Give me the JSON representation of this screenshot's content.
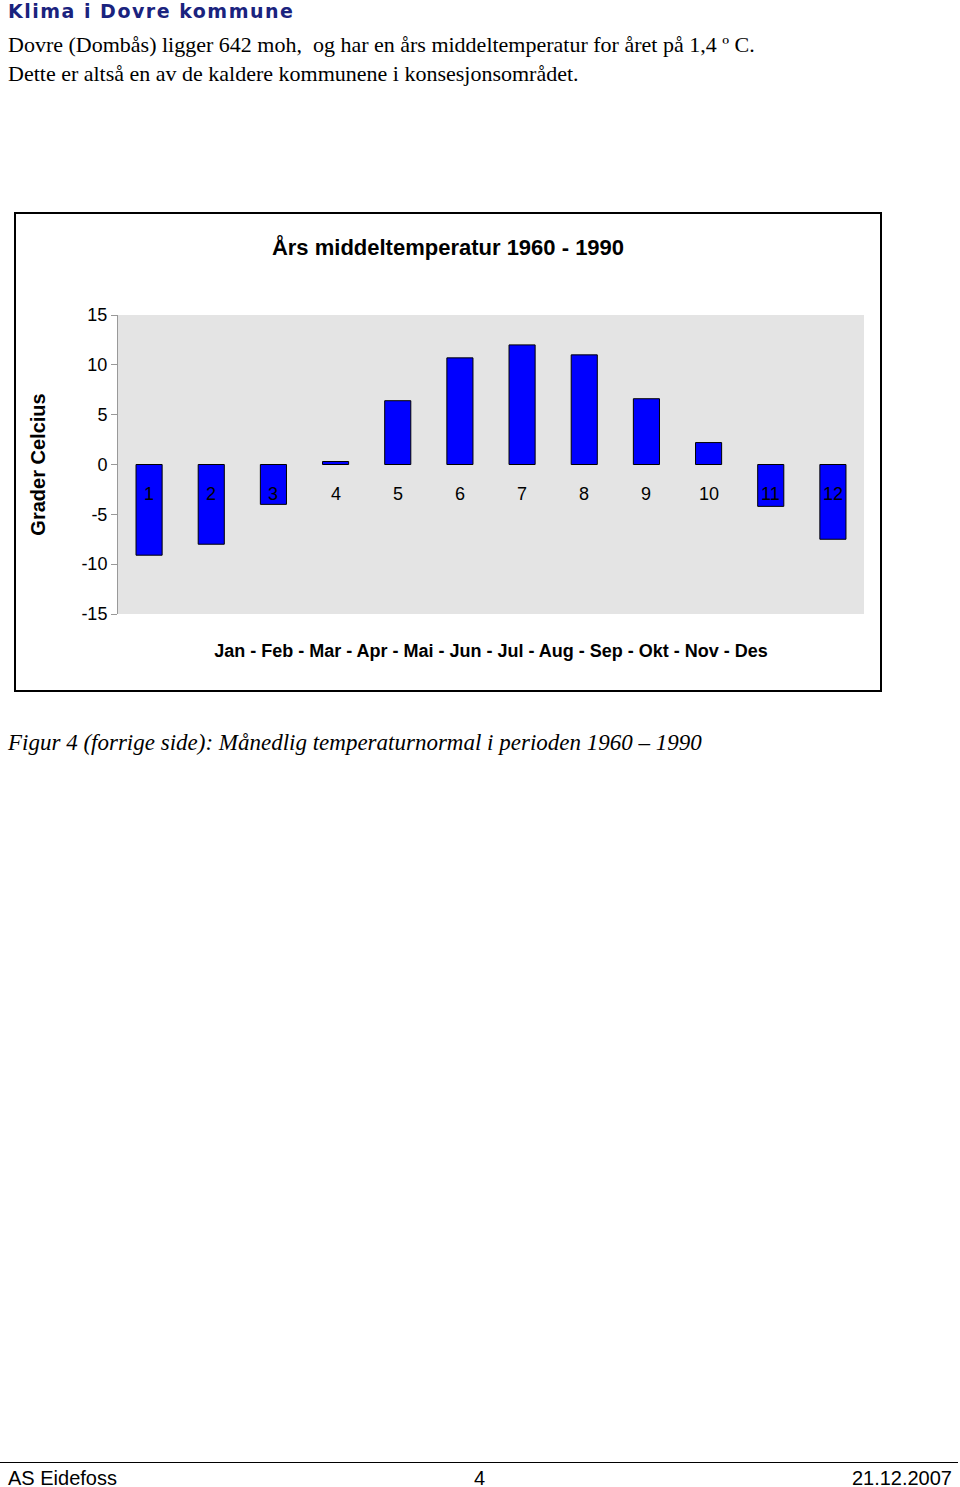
{
  "heading": "Klima i Dovre kommune",
  "text": [
    "Dovre (Dombås) ligger 642 moh,  og har en års middeltemperatur for året på 1,4 º C.",
    "Dette er altså en av de kaldere kommunene i konsesjonsområdet."
  ],
  "chart_data": {
    "type": "bar",
    "title": "Års middeltemperatur 1960 - 1990",
    "y_label": "Grader Celcius",
    "x_label": "Jan - Feb - Mar - Apr - Mai - Jun - Jul - Aug - Sep - Okt - Nov - Des",
    "categories": [
      "1",
      "2",
      "3",
      "4",
      "5",
      "6",
      "7",
      "8",
      "9",
      "10",
      "11",
      "12"
    ],
    "values": [
      -9.1,
      -8.0,
      -4.0,
      0.3,
      6.4,
      10.7,
      12.0,
      11.0,
      6.6,
      2.2,
      -4.2,
      -7.5
    ],
    "color": "#0000ff",
    "ylim": [
      -15,
      15
    ],
    "yticks": [
      -15,
      -10,
      -5,
      0,
      5,
      10,
      15
    ],
    "grid": false
  },
  "caption": "Figur 4 (forrige side): Månedlig temperaturnormal i perioden 1960 – 1990",
  "footer": {
    "left": "AS Eidefoss",
    "center": "4",
    "right": "21.12.2007"
  }
}
